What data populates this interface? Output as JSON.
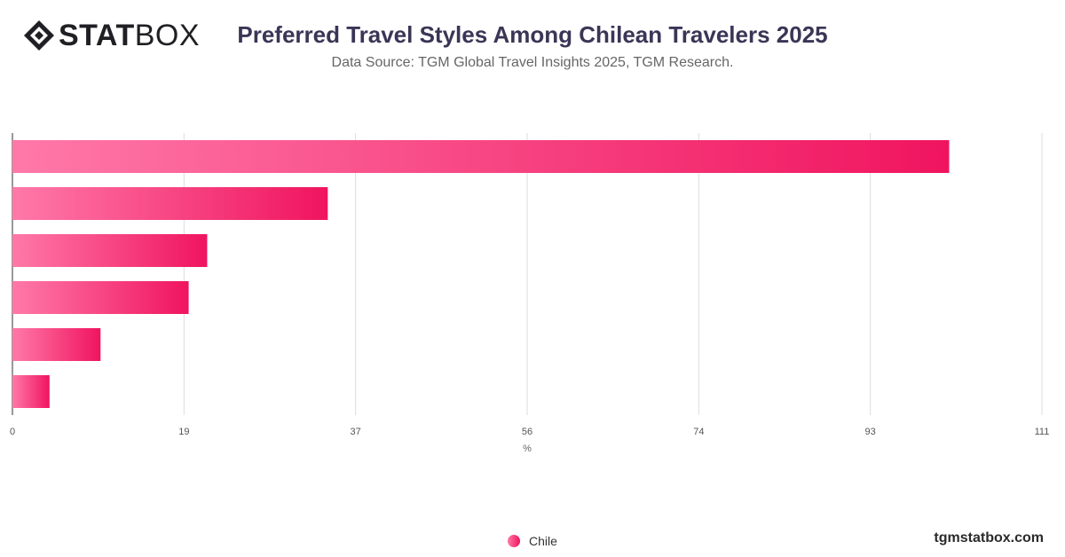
{
  "brand": {
    "logo_bold": "STAT",
    "logo_light": "BOX"
  },
  "header": {
    "title": "Preferred Travel Styles Among Chilean Travelers 2025",
    "subtitle": "Data Source: TGM Global Travel Insights 2025, TGM Research."
  },
  "chart_data": {
    "type": "bar",
    "orientation": "horizontal",
    "categories": [
      "",
      "",
      "",
      "",
      "",
      ""
    ],
    "series": [
      {
        "name": "Chile",
        "values": [
          101,
          34,
          21,
          19,
          9.5,
          4
        ]
      }
    ],
    "xlabel": "%",
    "xlim": [
      0,
      111
    ],
    "xticks": [
      "0",
      "19",
      "37",
      "56",
      "74",
      "93",
      "111"
    ],
    "grid": true,
    "legend": "bottom-center",
    "colors": {
      "bar_start": "#ff79a8",
      "bar_end": "#f0145f",
      "grid": "#dddddd"
    }
  },
  "legend": {
    "label": "Chile"
  },
  "footer": {
    "site": "tgmstatbox.com"
  }
}
